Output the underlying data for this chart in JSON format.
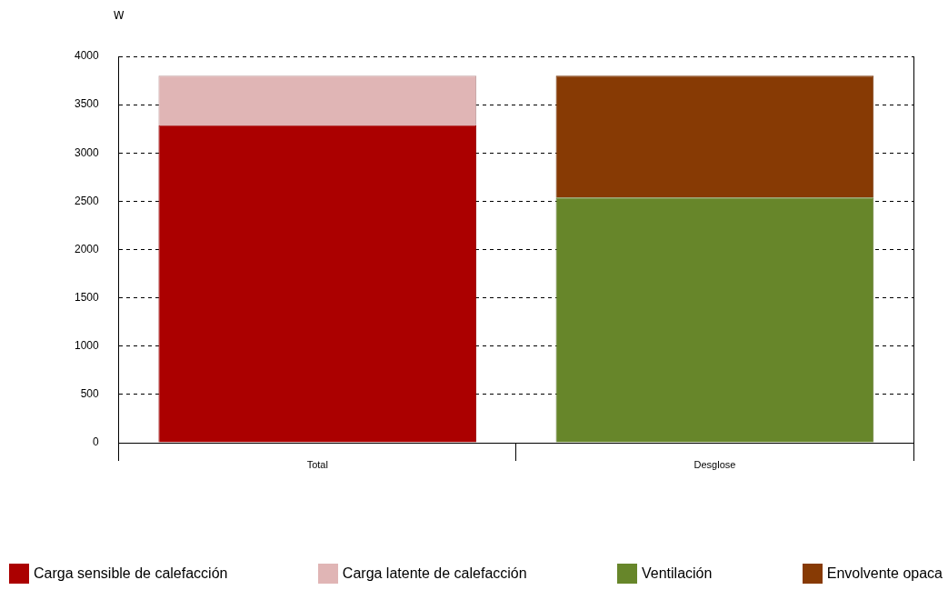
{
  "chart_data": {
    "type": "bar",
    "stacked": true,
    "ylabel": "W",
    "categories": [
      "Total",
      "Desglose"
    ],
    "series": [
      {
        "name": "Carga sensible de calefacción",
        "color": "#ab0000",
        "values": [
          3290,
          null
        ]
      },
      {
        "name": "Carga latente de calefacción",
        "color": "#e0b5b5",
        "values": [
          510,
          null
        ]
      },
      {
        "name": "Ventilación",
        "color": "#67862a",
        "values": [
          null,
          2540
        ]
      },
      {
        "name": "Envolvente opaca",
        "color": "#873a04",
        "values": [
          null,
          1260
        ]
      }
    ],
    "ylim": [
      0,
      4000
    ],
    "yticks": [
      0,
      500,
      1000,
      1500,
      2000,
      2500,
      3000,
      3500,
      4000
    ],
    "grid": "y",
    "legend": "bottom"
  }
}
